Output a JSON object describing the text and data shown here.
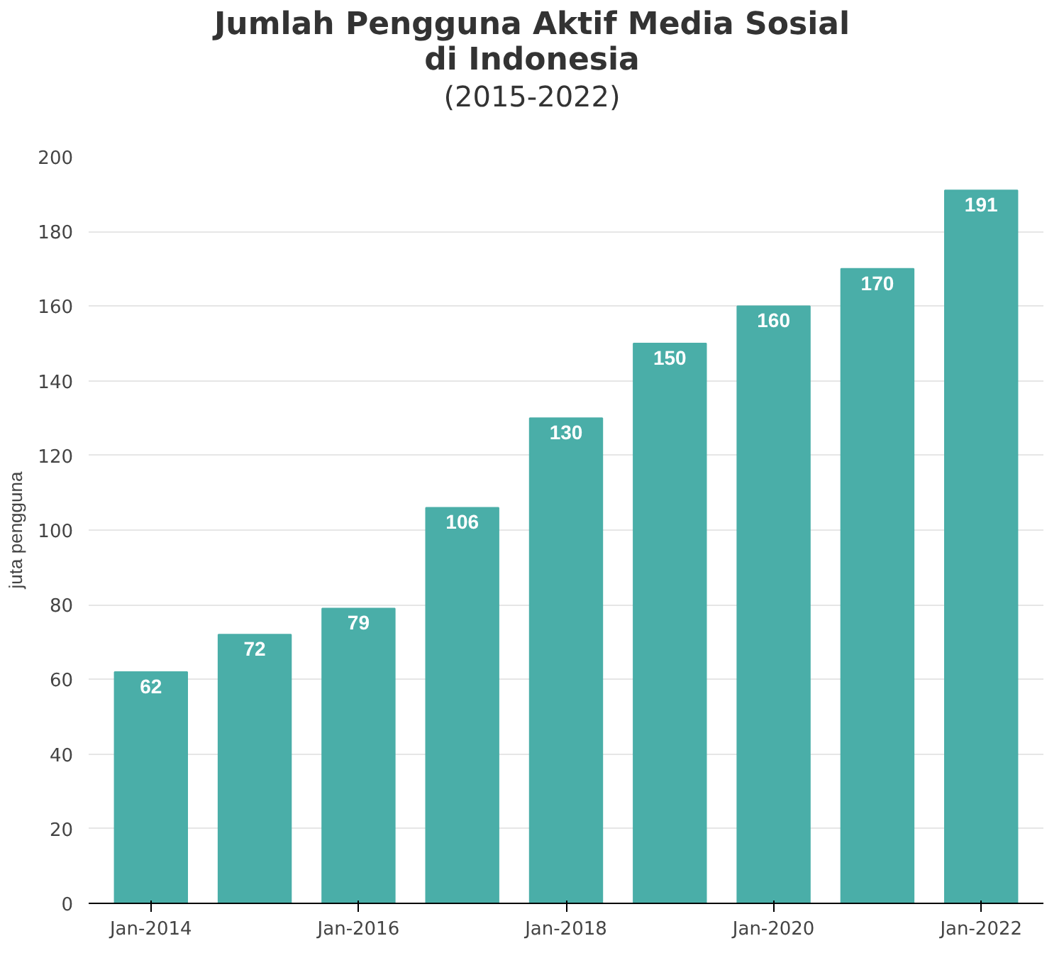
{
  "chart_data": {
    "type": "bar",
    "title": "Jumlah Pengguna Aktif Media Sosial di Indonesia",
    "subtitle": "(2015-2022)",
    "ylabel": "juta pengguna",
    "categories": [
      "Jan-2014",
      null,
      "Jan-2016",
      null,
      "Jan-2018",
      null,
      "Jan-2020",
      null,
      "Jan-2022"
    ],
    "values": [
      62,
      72,
      79,
      106,
      130,
      150,
      160,
      170,
      191
    ],
    "color": "#4aaea8",
    "ylim": [
      0,
      200
    ],
    "yticks": [
      0,
      20,
      40,
      60,
      80,
      100,
      120,
      140,
      160,
      180,
      200
    ],
    "grid": "y",
    "data_labels": true
  }
}
